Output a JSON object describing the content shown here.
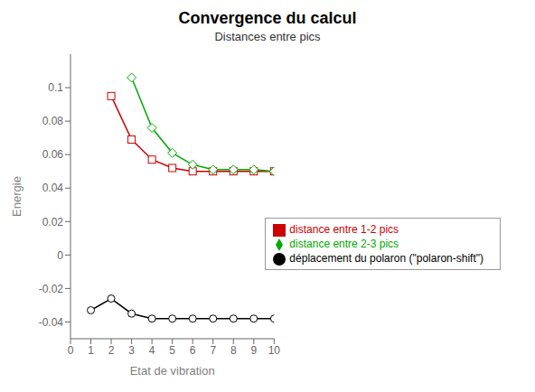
{
  "chart_data": {
    "type": "line",
    "title": "Convergence du calcul",
    "subtitle": "Distances entre pics",
    "xlabel": "Etat de vibration",
    "ylabel": "Energie",
    "xlim": [
      0,
      10
    ],
    "ylim": [
      -0.05,
      0.12
    ],
    "xticks": [
      0,
      1,
      2,
      3,
      4,
      5,
      6,
      7,
      8,
      9,
      10
    ],
    "yticks": [
      -0.04,
      -0.02,
      0,
      0.02,
      0.04,
      0.06,
      0.08,
      0.1
    ],
    "grid": false,
    "legend": "lower right",
    "series": [
      {
        "name": "déplacement du polaron (\"polaron-shift\")",
        "color": "#000000",
        "marker": "circle",
        "x": [
          1,
          2,
          3,
          4,
          5,
          6,
          7,
          8,
          9,
          10
        ],
        "values": [
          -0.033,
          -0.026,
          -0.035,
          -0.038,
          -0.038,
          -0.038,
          -0.038,
          -0.038,
          -0.038,
          -0.038
        ]
      },
      {
        "name": "distance entre 1-2 pics",
        "color": "#cc0000",
        "marker": "square",
        "x": [
          2,
          3,
          4,
          5,
          6,
          7,
          8,
          9,
          10
        ],
        "values": [
          0.095,
          0.069,
          0.057,
          0.052,
          0.05,
          0.05,
          0.05,
          0.05,
          0.05
        ]
      },
      {
        "name": "distance entre 2-3 pics",
        "color": "#00aa00",
        "marker": "diamond",
        "x": [
          3,
          4,
          5,
          6,
          7,
          8,
          9,
          10
        ],
        "values": [
          0.106,
          0.076,
          0.061,
          0.054,
          0.051,
          0.051,
          0.051,
          0.05
        ]
      }
    ]
  }
}
